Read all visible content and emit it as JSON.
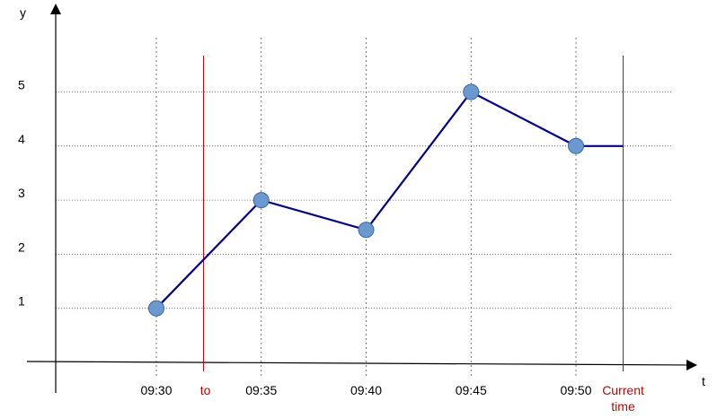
{
  "chart_data": {
    "type": "line",
    "xlabel": "t",
    "ylabel": "y",
    "x_ticks": [
      "09:30",
      "09:35",
      "09:40",
      "09:45",
      "09:50"
    ],
    "y_ticks": [
      "1",
      "2",
      "3",
      "4",
      "5"
    ],
    "grid": true,
    "series": [
      {
        "points": [
          {
            "x": "09:30",
            "y": 1
          },
          {
            "x": "09:35",
            "y": 3
          },
          {
            "x": "09:40",
            "y": 2.45
          },
          {
            "x": "09:45",
            "y": 5
          },
          {
            "x": "09:50",
            "y": 4
          }
        ],
        "line_color": "#000099",
        "marker_color": "#6a99d0"
      }
    ],
    "tail_line": {
      "from": "09:50",
      "to": "Current time",
      "y": 4
    },
    "vertical_markers": [
      {
        "label": "to",
        "x": "09:32:15",
        "color": "#cc0000"
      },
      {
        "label_line1": "Current",
        "label_line2": "time",
        "x": "09:52:15",
        "color": "#cc0000"
      }
    ]
  }
}
